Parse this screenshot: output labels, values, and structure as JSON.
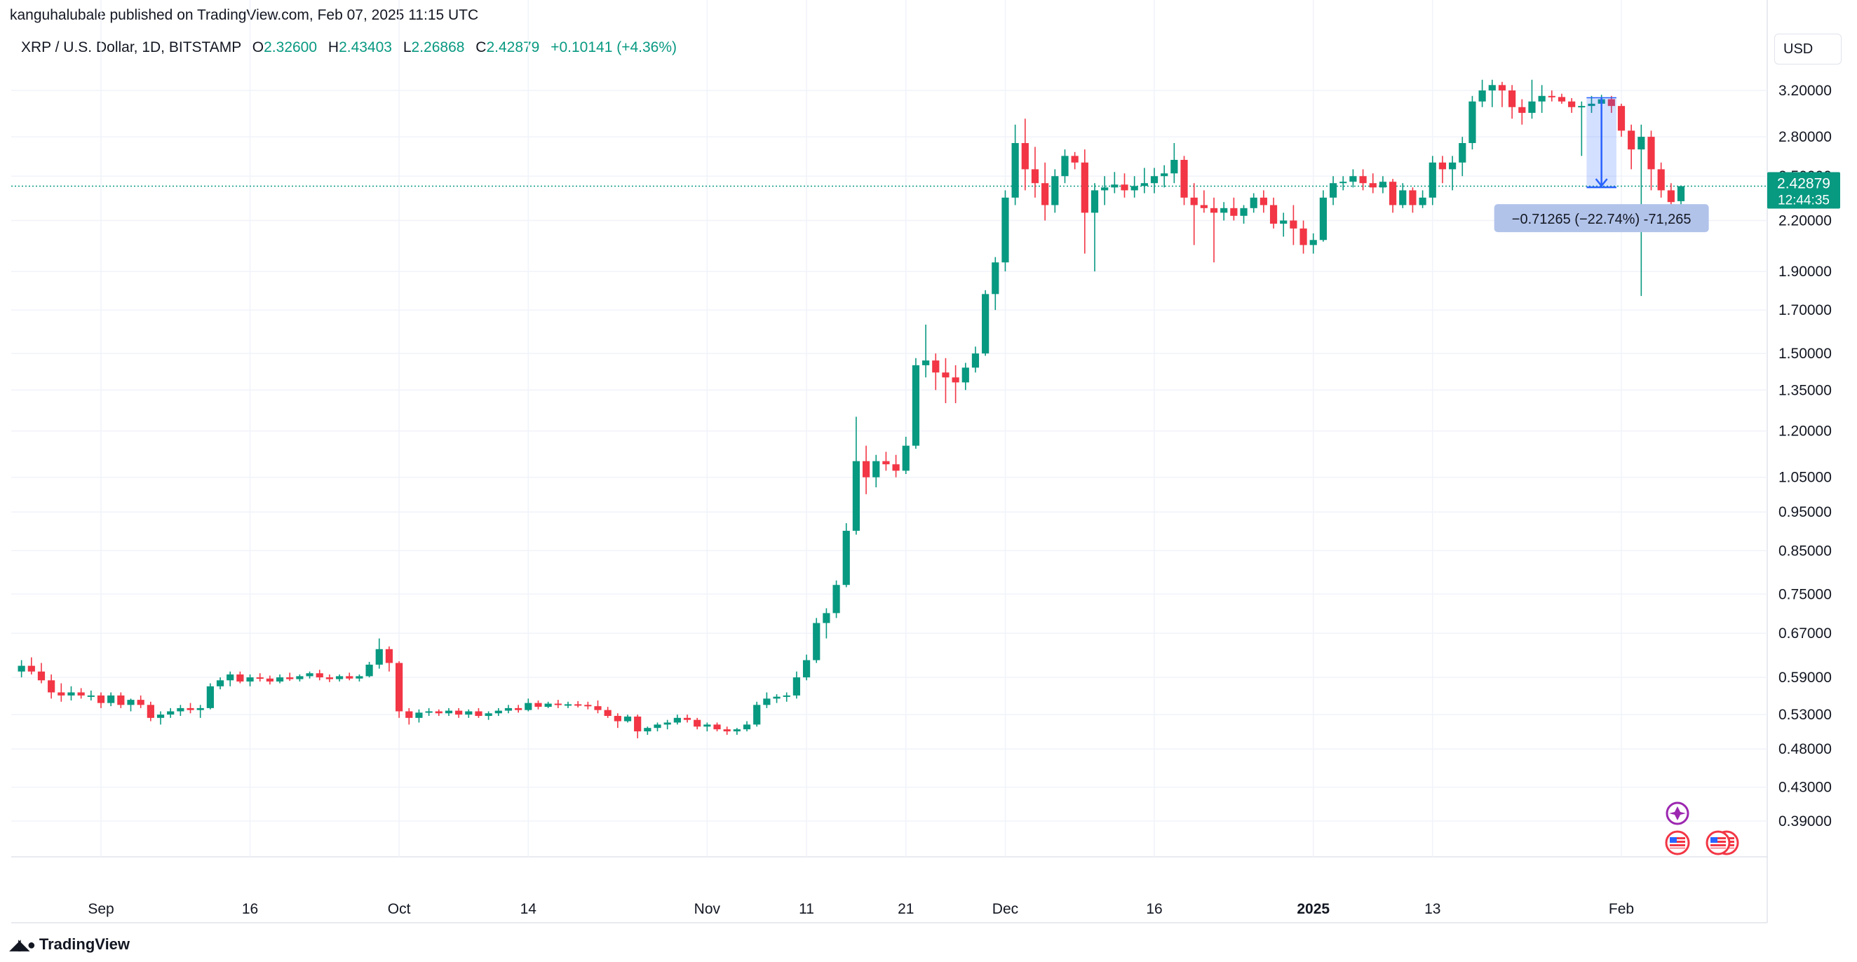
{
  "publisher": "kanguhalubale published on TradingView.com, Feb 07, 2025 11:15 UTC",
  "legend": {
    "symbol": "XRP / U.S. Dollar, 1D, BITSTAMP",
    "open_label": "O",
    "open": "2.32600",
    "high_label": "H",
    "high": "2.43403",
    "low_label": "L",
    "low": "2.26868",
    "close_label": "C",
    "close": "2.42879",
    "change": "+0.10141 (+4.36%)"
  },
  "currency": "USD",
  "footer": {
    "logo_text": "TradingView",
    "logo_icon": "tradingview-logo-icon"
  },
  "colors": {
    "up": "#089981",
    "down": "#f23645",
    "price_tag": "#089981",
    "measure": "#2962ff"
  },
  "chart_data": {
    "type": "candlestick",
    "y_scale": "log",
    "y_ticks": [
      "3.20000",
      "2.80000",
      "2.50000",
      "2.20000",
      "1.90000",
      "1.70000",
      "1.50000",
      "1.35000",
      "1.20000",
      "1.05000",
      "0.95000",
      "0.85000",
      "0.75000",
      "0.67000",
      "0.59000",
      "0.53000",
      "0.48000",
      "0.43000",
      "0.39000"
    ],
    "x_ticks": [
      {
        "label": "Sep",
        "date": "2024-09-01"
      },
      {
        "label": "16",
        "date": "2024-09-16"
      },
      {
        "label": "Oct",
        "date": "2024-10-01"
      },
      {
        "label": "14",
        "date": "2024-10-14"
      },
      {
        "label": "Nov",
        "date": "2024-11-01"
      },
      {
        "label": "11",
        "date": "2024-11-11"
      },
      {
        "label": "21",
        "date": "2024-11-21"
      },
      {
        "label": "Dec",
        "date": "2024-12-01"
      },
      {
        "label": "16",
        "date": "2024-12-16"
      },
      {
        "label": "2025",
        "date": "2025-01-01",
        "bold": true
      },
      {
        "label": "13",
        "date": "2025-01-13"
      },
      {
        "label": "Feb",
        "date": "2025-02-01"
      }
    ],
    "last_price": "2.42879",
    "countdown": "12:44:35",
    "measure": {
      "start_date": "2025-01-29",
      "end_date": "2025-02-01",
      "from": 3.134,
      "to": 2.421,
      "label": "−0.71265 (−22.74%) -71,265"
    },
    "candles": [
      [
        "2024-08-24",
        0.6,
        0.62,
        0.59,
        0.61
      ],
      [
        "2024-08-25",
        0.61,
        0.625,
        0.595,
        0.6
      ],
      [
        "2024-08-26",
        0.6,
        0.615,
        0.58,
        0.585
      ],
      [
        "2024-08-27",
        0.585,
        0.595,
        0.555,
        0.565
      ],
      [
        "2024-08-28",
        0.565,
        0.58,
        0.55,
        0.56
      ],
      [
        "2024-08-29",
        0.56,
        0.575,
        0.552,
        0.565
      ],
      [
        "2024-08-30",
        0.565,
        0.572,
        0.555,
        0.56
      ],
      [
        "2024-08-31",
        0.56,
        0.568,
        0.552,
        0.56
      ],
      [
        "2024-09-01",
        0.56,
        0.565,
        0.54,
        0.548
      ],
      [
        "2024-09-02",
        0.548,
        0.565,
        0.543,
        0.56
      ],
      [
        "2024-09-03",
        0.56,
        0.565,
        0.54,
        0.545
      ],
      [
        "2024-09-04",
        0.545,
        0.555,
        0.535,
        0.553
      ],
      [
        "2024-09-05",
        0.553,
        0.56,
        0.54,
        0.545
      ],
      [
        "2024-09-06",
        0.545,
        0.55,
        0.52,
        0.525
      ],
      [
        "2024-09-07",
        0.525,
        0.535,
        0.515,
        0.53
      ],
      [
        "2024-09-08",
        0.53,
        0.54,
        0.525,
        0.535
      ],
      [
        "2024-09-09",
        0.535,
        0.545,
        0.528,
        0.54
      ],
      [
        "2024-09-10",
        0.54,
        0.548,
        0.532,
        0.537
      ],
      [
        "2024-09-11",
        0.537,
        0.545,
        0.525,
        0.54
      ],
      [
        "2024-09-12",
        0.54,
        0.58,
        0.538,
        0.575
      ],
      [
        "2024-09-13",
        0.575,
        0.59,
        0.57,
        0.585
      ],
      [
        "2024-09-14",
        0.585,
        0.6,
        0.575,
        0.595
      ],
      [
        "2024-09-15",
        0.595,
        0.6,
        0.58,
        0.583
      ],
      [
        "2024-09-16",
        0.583,
        0.595,
        0.575,
        0.59
      ],
      [
        "2024-09-17",
        0.59,
        0.597,
        0.583,
        0.588
      ],
      [
        "2024-09-18",
        0.588,
        0.593,
        0.578,
        0.583
      ],
      [
        "2024-09-19",
        0.583,
        0.595,
        0.58,
        0.59
      ],
      [
        "2024-09-20",
        0.59,
        0.598,
        0.584,
        0.587
      ],
      [
        "2024-09-21",
        0.587,
        0.595,
        0.583,
        0.592
      ],
      [
        "2024-09-22",
        0.592,
        0.6,
        0.588,
        0.597
      ],
      [
        "2024-09-23",
        0.597,
        0.603,
        0.585,
        0.59
      ],
      [
        "2024-09-24",
        0.59,
        0.595,
        0.582,
        0.587
      ],
      [
        "2024-09-25",
        0.587,
        0.595,
        0.583,
        0.592
      ],
      [
        "2024-09-26",
        0.592,
        0.598,
        0.585,
        0.588
      ],
      [
        "2024-09-27",
        0.588,
        0.595,
        0.583,
        0.592
      ],
      [
        "2024-09-28",
        0.592,
        0.617,
        0.59,
        0.612
      ],
      [
        "2024-09-29",
        0.612,
        0.66,
        0.605,
        0.64
      ],
      [
        "2024-09-30",
        0.64,
        0.645,
        0.6,
        0.615
      ],
      [
        "2024-10-01",
        0.615,
        0.618,
        0.525,
        0.535
      ],
      [
        "2024-10-02",
        0.535,
        0.54,
        0.515,
        0.525
      ],
      [
        "2024-10-03",
        0.525,
        0.538,
        0.518,
        0.533
      ],
      [
        "2024-10-04",
        0.533,
        0.54,
        0.528,
        0.535
      ],
      [
        "2024-10-05",
        0.535,
        0.538,
        0.528,
        0.532
      ],
      [
        "2024-10-06",
        0.532,
        0.54,
        0.528,
        0.536
      ],
      [
        "2024-10-07",
        0.536,
        0.54,
        0.525,
        0.53
      ],
      [
        "2024-10-08",
        0.53,
        0.538,
        0.525,
        0.535
      ],
      [
        "2024-10-09",
        0.535,
        0.54,
        0.525,
        0.528
      ],
      [
        "2024-10-10",
        0.528,
        0.535,
        0.522,
        0.532
      ],
      [
        "2024-10-11",
        0.532,
        0.54,
        0.528,
        0.536
      ],
      [
        "2024-10-12",
        0.536,
        0.545,
        0.532,
        0.54
      ],
      [
        "2024-10-13",
        0.54,
        0.545,
        0.533,
        0.537
      ],
      [
        "2024-10-14",
        0.537,
        0.555,
        0.535,
        0.548
      ],
      [
        "2024-10-15",
        0.548,
        0.552,
        0.538,
        0.542
      ],
      [
        "2024-10-16",
        0.542,
        0.55,
        0.54,
        0.547
      ],
      [
        "2024-10-17",
        0.547,
        0.553,
        0.54,
        0.545
      ],
      [
        "2024-10-18",
        0.545,
        0.55,
        0.54,
        0.546
      ],
      [
        "2024-10-19",
        0.546,
        0.551,
        0.541,
        0.545
      ],
      [
        "2024-10-20",
        0.545,
        0.55,
        0.538,
        0.543
      ],
      [
        "2024-10-21",
        0.543,
        0.552,
        0.532,
        0.537
      ],
      [
        "2024-10-22",
        0.537,
        0.542,
        0.525,
        0.528
      ],
      [
        "2024-10-23",
        0.528,
        0.532,
        0.51,
        0.52
      ],
      [
        "2024-10-24",
        0.52,
        0.53,
        0.518,
        0.527
      ],
      [
        "2024-10-25",
        0.527,
        0.53,
        0.495,
        0.505
      ],
      [
        "2024-10-26",
        0.505,
        0.512,
        0.5,
        0.51
      ],
      [
        "2024-10-27",
        0.51,
        0.518,
        0.505,
        0.515
      ],
      [
        "2024-10-28",
        0.515,
        0.522,
        0.508,
        0.518
      ],
      [
        "2024-10-29",
        0.518,
        0.53,
        0.515,
        0.525
      ],
      [
        "2024-10-30",
        0.525,
        0.53,
        0.518,
        0.522
      ],
      [
        "2024-10-31",
        0.522,
        0.525,
        0.508,
        0.512
      ],
      [
        "2024-11-01",
        0.512,
        0.518,
        0.505,
        0.515
      ],
      [
        "2024-11-02",
        0.515,
        0.518,
        0.505,
        0.508
      ],
      [
        "2024-11-03",
        0.508,
        0.512,
        0.5,
        0.505
      ],
      [
        "2024-11-04",
        0.505,
        0.51,
        0.5,
        0.508
      ],
      [
        "2024-11-05",
        0.508,
        0.52,
        0.505,
        0.515
      ],
      [
        "2024-11-06",
        0.515,
        0.55,
        0.512,
        0.545
      ],
      [
        "2024-11-07",
        0.545,
        0.565,
        0.54,
        0.555
      ],
      [
        "2024-11-08",
        0.555,
        0.562,
        0.548,
        0.558
      ],
      [
        "2024-11-09",
        0.558,
        0.565,
        0.55,
        0.56
      ],
      [
        "2024-11-10",
        0.56,
        0.6,
        0.555,
        0.59
      ],
      [
        "2024-11-11",
        0.59,
        0.63,
        0.585,
        0.62
      ],
      [
        "2024-11-12",
        0.62,
        0.7,
        0.615,
        0.69
      ],
      [
        "2024-11-13",
        0.69,
        0.72,
        0.66,
        0.71
      ],
      [
        "2024-11-14",
        0.71,
        0.78,
        0.7,
        0.77
      ],
      [
        "2024-11-15",
        0.77,
        0.92,
        0.765,
        0.9
      ],
      [
        "2024-11-16",
        0.9,
        1.25,
        0.89,
        1.1
      ],
      [
        "2024-11-17",
        1.1,
        1.15,
        1.0,
        1.05
      ],
      [
        "2024-11-18",
        1.05,
        1.12,
        1.02,
        1.1
      ],
      [
        "2024-11-19",
        1.1,
        1.13,
        1.07,
        1.09
      ],
      [
        "2024-11-20",
        1.09,
        1.12,
        1.05,
        1.07
      ],
      [
        "2024-11-21",
        1.07,
        1.18,
        1.06,
        1.15
      ],
      [
        "2024-11-22",
        1.15,
        1.48,
        1.14,
        1.45
      ],
      [
        "2024-11-23",
        1.45,
        1.63,
        1.4,
        1.47
      ],
      [
        "2024-11-24",
        1.47,
        1.5,
        1.35,
        1.42
      ],
      [
        "2024-11-25",
        1.42,
        1.48,
        1.3,
        1.4
      ],
      [
        "2024-11-26",
        1.4,
        1.45,
        1.3,
        1.38
      ],
      [
        "2024-11-27",
        1.38,
        1.46,
        1.35,
        1.44
      ],
      [
        "2024-11-28",
        1.44,
        1.53,
        1.42,
        1.5
      ],
      [
        "2024-11-29",
        1.5,
        1.8,
        1.49,
        1.78
      ],
      [
        "2024-11-30",
        1.78,
        1.98,
        1.7,
        1.95
      ],
      [
        "2024-12-01",
        1.95,
        2.4,
        1.9,
        2.35
      ],
      [
        "2024-12-02",
        2.35,
        2.9,
        2.3,
        2.75
      ],
      [
        "2024-12-03",
        2.75,
        2.95,
        2.4,
        2.55
      ],
      [
        "2024-12-04",
        2.55,
        2.72,
        2.35,
        2.45
      ],
      [
        "2024-12-05",
        2.45,
        2.6,
        2.2,
        2.3
      ],
      [
        "2024-12-06",
        2.3,
        2.55,
        2.25,
        2.5
      ],
      [
        "2024-12-07",
        2.5,
        2.7,
        2.45,
        2.65
      ],
      [
        "2024-12-08",
        2.65,
        2.68,
        2.55,
        2.6
      ],
      [
        "2024-12-09",
        2.6,
        2.7,
        2.0,
        2.25
      ],
      [
        "2024-12-10",
        2.25,
        2.45,
        1.9,
        2.4
      ],
      [
        "2024-12-11",
        2.4,
        2.5,
        2.3,
        2.42
      ],
      [
        "2024-12-12",
        2.42,
        2.53,
        2.38,
        2.44
      ],
      [
        "2024-12-13",
        2.44,
        2.52,
        2.35,
        2.4
      ],
      [
        "2024-12-14",
        2.4,
        2.5,
        2.35,
        2.43
      ],
      [
        "2024-12-15",
        2.43,
        2.56,
        2.38,
        2.45
      ],
      [
        "2024-12-16",
        2.45,
        2.56,
        2.38,
        2.5
      ],
      [
        "2024-12-17",
        2.5,
        2.58,
        2.42,
        2.52
      ],
      [
        "2024-12-18",
        2.52,
        2.75,
        2.45,
        2.62
      ],
      [
        "2024-12-19",
        2.62,
        2.65,
        2.3,
        2.35
      ],
      [
        "2024-12-20",
        2.35,
        2.45,
        2.05,
        2.3
      ],
      [
        "2024-12-21",
        2.3,
        2.4,
        2.25,
        2.28
      ],
      [
        "2024-12-22",
        2.28,
        2.35,
        1.95,
        2.25
      ],
      [
        "2024-12-23",
        2.25,
        2.32,
        2.2,
        2.28
      ],
      [
        "2024-12-24",
        2.28,
        2.35,
        2.2,
        2.23
      ],
      [
        "2024-12-25",
        2.23,
        2.3,
        2.18,
        2.28
      ],
      [
        "2024-12-26",
        2.28,
        2.38,
        2.25,
        2.35
      ],
      [
        "2024-12-27",
        2.35,
        2.4,
        2.25,
        2.3
      ],
      [
        "2024-12-28",
        2.3,
        2.35,
        2.15,
        2.18
      ],
      [
        "2024-12-29",
        2.18,
        2.25,
        2.1,
        2.2
      ],
      [
        "2024-12-30",
        2.2,
        2.3,
        2.05,
        2.15
      ],
      [
        "2024-12-31",
        2.15,
        2.2,
        2.0,
        2.05
      ],
      [
        "2025-01-01",
        2.05,
        2.12,
        2.0,
        2.08
      ],
      [
        "2025-01-02",
        2.08,
        2.4,
        2.07,
        2.35
      ],
      [
        "2025-01-03",
        2.35,
        2.5,
        2.3,
        2.45
      ],
      [
        "2025-01-04",
        2.45,
        2.5,
        2.4,
        2.46
      ],
      [
        "2025-01-05",
        2.46,
        2.55,
        2.42,
        2.5
      ],
      [
        "2025-01-06",
        2.5,
        2.55,
        2.4,
        2.45
      ],
      [
        "2025-01-07",
        2.45,
        2.52,
        2.38,
        2.42
      ],
      [
        "2025-01-08",
        2.42,
        2.5,
        2.38,
        2.46
      ],
      [
        "2025-01-09",
        2.46,
        2.48,
        2.25,
        2.3
      ],
      [
        "2025-01-10",
        2.3,
        2.45,
        2.28,
        2.4
      ],
      [
        "2025-01-11",
        2.4,
        2.42,
        2.25,
        2.3
      ],
      [
        "2025-01-12",
        2.3,
        2.4,
        2.28,
        2.35
      ],
      [
        "2025-01-13",
        2.35,
        2.65,
        2.3,
        2.6
      ],
      [
        "2025-01-14",
        2.6,
        2.65,
        2.45,
        2.55
      ],
      [
        "2025-01-15",
        2.55,
        2.65,
        2.4,
        2.6
      ],
      [
        "2025-01-16",
        2.6,
        2.8,
        2.5,
        2.75
      ],
      [
        "2025-01-17",
        2.75,
        3.15,
        2.7,
        3.1
      ],
      [
        "2025-01-18",
        3.1,
        3.3,
        3.05,
        3.2
      ],
      [
        "2025-01-19",
        3.2,
        3.3,
        3.05,
        3.25
      ],
      [
        "2025-01-20",
        3.25,
        3.28,
        3.05,
        3.2
      ],
      [
        "2025-01-21",
        3.2,
        3.25,
        2.95,
        3.05
      ],
      [
        "2025-01-22",
        3.05,
        3.12,
        2.9,
        3.0
      ],
      [
        "2025-01-23",
        3.0,
        3.3,
        2.95,
        3.1
      ],
      [
        "2025-01-24",
        3.1,
        3.25,
        3.0,
        3.15
      ],
      [
        "2025-01-25",
        3.15,
        3.2,
        3.1,
        3.14
      ],
      [
        "2025-01-26",
        3.14,
        3.17,
        3.08,
        3.1
      ],
      [
        "2025-01-27",
        3.1,
        3.13,
        3.0,
        3.05
      ],
      [
        "2025-01-28",
        3.05,
        3.1,
        2.65,
        3.06
      ],
      [
        "2025-01-29",
        3.06,
        3.15,
        3.0,
        3.08
      ],
      [
        "2025-01-30",
        3.08,
        3.16,
        3.0,
        3.12
      ],
      [
        "2025-01-31",
        3.12,
        3.15,
        3.0,
        3.06
      ],
      [
        "2025-02-01",
        3.06,
        3.08,
        2.8,
        2.85
      ],
      [
        "2025-02-02",
        2.85,
        2.9,
        2.55,
        2.7
      ],
      [
        "2025-02-03",
        2.7,
        2.9,
        1.77,
        2.8
      ],
      [
        "2025-02-04",
        2.8,
        2.85,
        2.4,
        2.55
      ],
      [
        "2025-02-05",
        2.55,
        2.6,
        2.35,
        2.4
      ],
      [
        "2025-02-06",
        2.4,
        2.45,
        2.25,
        2.32
      ],
      [
        "2025-02-07",
        2.326,
        2.434,
        2.269,
        2.429
      ]
    ]
  }
}
